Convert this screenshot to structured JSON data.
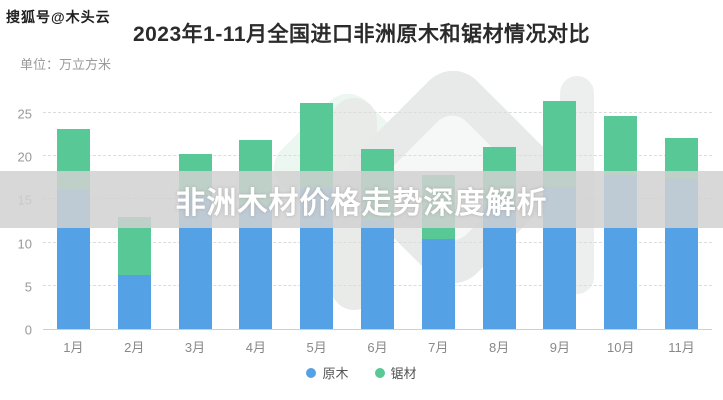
{
  "header": {
    "publisher_watermark": "搜狐号@木头云",
    "title": "2023年1-11月全国进口非洲原木和锯材情况对比"
  },
  "chart": {
    "unit_label": "单位：万立方米"
  },
  "overlay": {
    "caption": "非洲木材价格走势深度解析"
  },
  "colors": {
    "log_blue": "#55a1e5",
    "sawn_green": "#58c996",
    "banner_gray": "#d1d1d1",
    "grid_gray": "#dcdcdc",
    "axis_text_gray": "#999999"
  },
  "chart_data": {
    "type": "bar",
    "stacked": true,
    "title": "2023年1-11月全国进口非洲原木和锯材情况对比",
    "ylabel": "单位：万立方米",
    "categories": [
      "1月",
      "2月",
      "3月",
      "4月",
      "5月",
      "6月",
      "7月",
      "8月",
      "9月",
      "10月",
      "11月"
    ],
    "series": [
      {
        "name": "原木",
        "color": "#55a1e5",
        "values": [
          16.2,
          6.3,
          15.5,
          14.3,
          16.3,
          12.6,
          10.4,
          14.3,
          16.4,
          17.8,
          17.4
        ]
      },
      {
        "name": "锯材",
        "color": "#58c996",
        "values": [
          7.0,
          6.7,
          4.7,
          7.6,
          9.9,
          8.2,
          7.4,
          6.8,
          10.0,
          6.8,
          4.7
        ]
      }
    ],
    "totals": [
      23.2,
      13.0,
      20.2,
      21.9,
      26.2,
      20.8,
      17.8,
      21.1,
      26.4,
      24.6,
      22.1
    ],
    "yticks": [
      0,
      5,
      10,
      15,
      20,
      25
    ],
    "ylim": [
      0,
      28
    ],
    "grid": "dashed",
    "legend_position": "bottom"
  }
}
